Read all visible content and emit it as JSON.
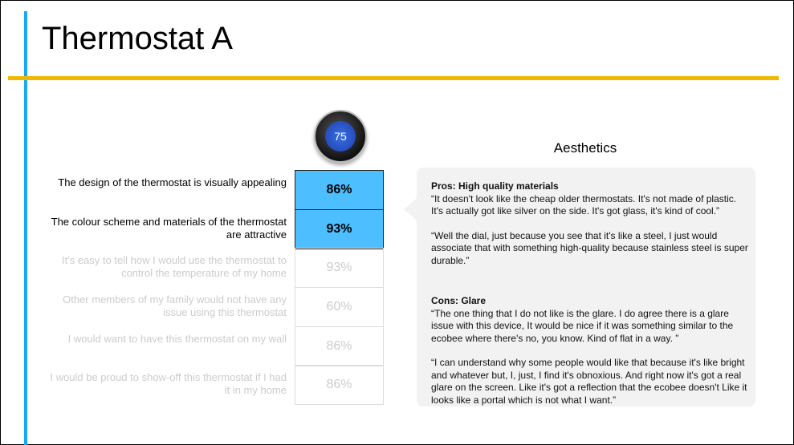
{
  "title": "Thermostat A",
  "thermostat_display": "75",
  "section_heading": "Aesthetics",
  "rows": [
    {
      "label": "The design of the thermostat is visually appealing",
      "value": "86%",
      "highlighted": true
    },
    {
      "label": "The colour scheme and materials of the thermostat are attractive",
      "value": "93%",
      "highlighted": true
    },
    {
      "label": "It's easy to tell how I would use the thermostat to control the temperature of my home",
      "value": "93%",
      "highlighted": false
    },
    {
      "label": "Other members of my family would not have any issue using this thermostat",
      "value": "60%",
      "highlighted": false
    },
    {
      "label": "I would want to have this thermostat on my wall",
      "value": "86%",
      "highlighted": false
    },
    {
      "label": "I would be proud to show-off this thermostat if I had it in my home",
      "value": "86%",
      "highlighted": false
    }
  ],
  "pros": {
    "heading": "Pros: High quality materials",
    "quotes": [
      "“It doesn't look like the cheap older thermostats. It's not made of plastic. It's actually got like silver on the side. It's got glass, it's kind of cool.”",
      "“Well the dial, just because you see that it's like a steel, I just would associate that with something high-quality because stainless steel is super durable.”"
    ]
  },
  "cons": {
    "heading": "Cons: Glare",
    "quotes": [
      "“The one thing that I do not like is the glare. I do agree there is a glare issue with this device, It would be nice if it was something similar to the ecobee where there's no, you know. Kind of flat in a way. ”",
      "“I can understand why some people would like that because it's like bright and whatever but, I, just, I find it's obnoxious. And right now it's got a real glare on the screen. Like it's got a reflection that the ecobee doesn't Like it looks like a portal which is not what I want.”"
    ]
  },
  "colors": {
    "accent_blue": "#1aa7f5",
    "highlight_cell": "#4dbeff",
    "rule_yellow": "#f0b800"
  }
}
